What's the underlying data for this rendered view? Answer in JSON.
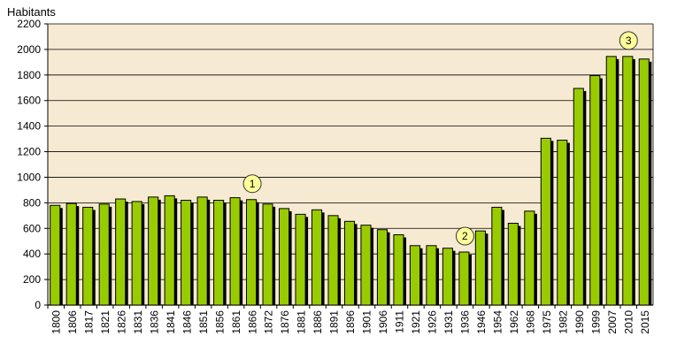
{
  "chart_data": {
    "type": "bar",
    "title": "",
    "xlabel": "",
    "ylabel": "Habitants",
    "ylim": [
      0,
      2200
    ],
    "yticks": [
      0,
      200,
      400,
      600,
      800,
      1000,
      1200,
      1400,
      1600,
      1800,
      2000,
      2200
    ],
    "grid": true,
    "legend": "none",
    "colors": {
      "bar": "#99cc00",
      "bar_shadow": "#000000",
      "plot_background": "#f7ead2",
      "marker_fill": "#ffff99"
    },
    "categories": [
      "1800",
      "1806",
      "1817",
      "1821",
      "1826",
      "1831",
      "1836",
      "1841",
      "1846",
      "1851",
      "1856",
      "1861",
      "1866",
      "1872",
      "1876",
      "1881",
      "1886",
      "1891",
      "1896",
      "1901",
      "1906",
      "1911",
      "1921",
      "1926",
      "1931",
      "1936",
      "1946",
      "1954",
      "1962",
      "1968",
      "1975",
      "1982",
      "1990",
      "1999",
      "2007",
      "2010",
      "2015"
    ],
    "values": [
      780,
      795,
      765,
      790,
      830,
      810,
      845,
      855,
      820,
      845,
      820,
      840,
      825,
      790,
      755,
      710,
      745,
      700,
      655,
      625,
      590,
      550,
      465,
      465,
      445,
      415,
      580,
      765,
      640,
      735,
      1305,
      1290,
      1695,
      1795,
      1945,
      1945,
      1925
    ],
    "annotations": [
      {
        "label": "1",
        "category": "1866"
      },
      {
        "label": "2",
        "category": "1936"
      },
      {
        "label": "3",
        "category": "2010"
      }
    ]
  }
}
